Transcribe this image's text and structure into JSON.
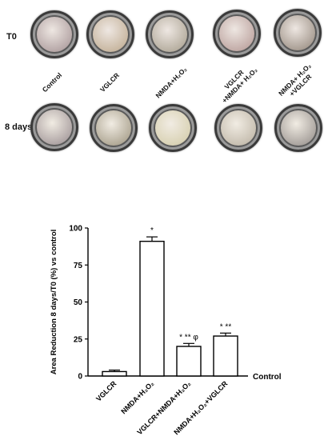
{
  "wells": {
    "row_labels": [
      "T0",
      "8 days"
    ],
    "conditions": [
      {
        "lines": [
          "Control"
        ]
      },
      {
        "lines": [
          "VGLCR"
        ]
      },
      {
        "lines": [
          "NMDA+H₂O₂"
        ]
      },
      {
        "lines": [
          "VGLCR",
          "+NMDA+ H₂O₂"
        ]
      },
      {
        "lines": [
          "NMDA+ H₂O₂",
          "+VGLCR"
        ]
      }
    ],
    "colors": {
      "t0": [
        "#b7a8a8",
        "#c9b8a2",
        "#b8b0a2",
        "#c3aca8",
        "#aa9f95"
      ],
      "d8": [
        "#b0a6a6",
        "#b3ab99",
        "#dad3b6",
        "#c8c0b2",
        "#aba5a0"
      ]
    }
  },
  "chart_data": {
    "type": "bar",
    "ylabel": "Area Reduction 8 days/T0 (%) vs control",
    "ylim": [
      0,
      100
    ],
    "yticks": [
      0,
      25,
      50,
      75,
      100
    ],
    "categories": [
      "VGLCR",
      "NMDA+H₂O₂",
      "VGLCR+NMDA+H₂O₂",
      "NMDA+H₂O₂+VGLCR"
    ],
    "values": [
      3,
      91,
      20,
      27
    ],
    "errors": [
      1,
      3,
      2,
      2
    ],
    "significance": [
      "",
      "*",
      "* ** φ",
      "* **"
    ],
    "baseline_label": "Control",
    "bar_fill": "#ffffff",
    "bar_stroke": "#000000"
  }
}
